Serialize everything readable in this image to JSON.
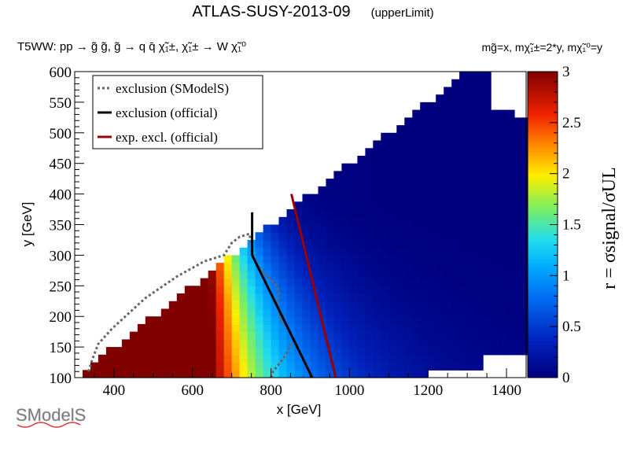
{
  "title": "ATLAS-SUSY-2013-09",
  "subtitle": "(upperLimit)",
  "process_label": "T5WW: pp → g̃ g̃, g̃ → q q̄ χ̃₁±, χ̃₁± → W χ̃₁⁰",
  "mass_relation": "mg̃=x, mχ̃₁±=2*y, mχ̃₁⁰=y",
  "logo_text": "SModelS",
  "chart_data": {
    "type": "heatmap",
    "xlabel": "x [GeV]",
    "ylabel": "y [GeV]",
    "zlabel": "r = σsignal/σUL",
    "xlim": [
      300,
      1450
    ],
    "ylim": [
      100,
      600
    ],
    "zlim": [
      0,
      3
    ],
    "xticks": [
      400,
      600,
      800,
      1000,
      1200,
      1400
    ],
    "yticks": [
      100,
      150,
      200,
      250,
      300,
      350,
      400,
      450,
      500,
      550,
      600
    ],
    "zticks": [
      0,
      0.5,
      1,
      1.5,
      2,
      2.5,
      3
    ],
    "grid": false,
    "legend_position": "top-left",
    "colors": {
      "scale": [
        "#00007f",
        "#0033cc",
        "#0099ff",
        "#22ddee",
        "#88ee55",
        "#ffee00",
        "#ff6600",
        "#dd1100",
        "#800000"
      ]
    },
    "series": [
      {
        "name": "exclusion (SModelS)",
        "style": "dotted",
        "color": "#666666",
        "points": [
          [
            335,
            110
          ],
          [
            345,
            130
          ],
          [
            360,
            155
          ],
          [
            395,
            180
          ],
          [
            480,
            230
          ],
          [
            560,
            265
          ],
          [
            630,
            290
          ],
          [
            680,
            300
          ],
          [
            700,
            320
          ],
          [
            720,
            330
          ],
          [
            745,
            335
          ],
          [
            748,
            325
          ],
          [
            755,
            300
          ],
          [
            765,
            285
          ],
          [
            790,
            265
          ],
          [
            810,
            255
          ],
          [
            822,
            240
          ],
          [
            815,
            220
          ],
          [
            825,
            195
          ],
          [
            845,
            180
          ],
          [
            858,
            160
          ],
          [
            830,
            130
          ],
          [
            805,
            110
          ],
          [
            800,
            100
          ]
        ]
      },
      {
        "name": "exclusion (official)",
        "style": "solid",
        "color": "#000000",
        "points": [
          [
            752,
            370
          ],
          [
            752,
            300
          ],
          [
            905,
            100
          ]
        ]
      },
      {
        "name": "exp. excl. (official)",
        "style": "solid",
        "color": "#990000",
        "points": [
          [
            852,
            400
          ],
          [
            965,
            100
          ]
        ]
      }
    ],
    "cells_note": "Grid of r values over the kinematic triangle y < x/2; r decreases with x from ~3 near x=300-600 to ~0 beyond x=1000"
  }
}
